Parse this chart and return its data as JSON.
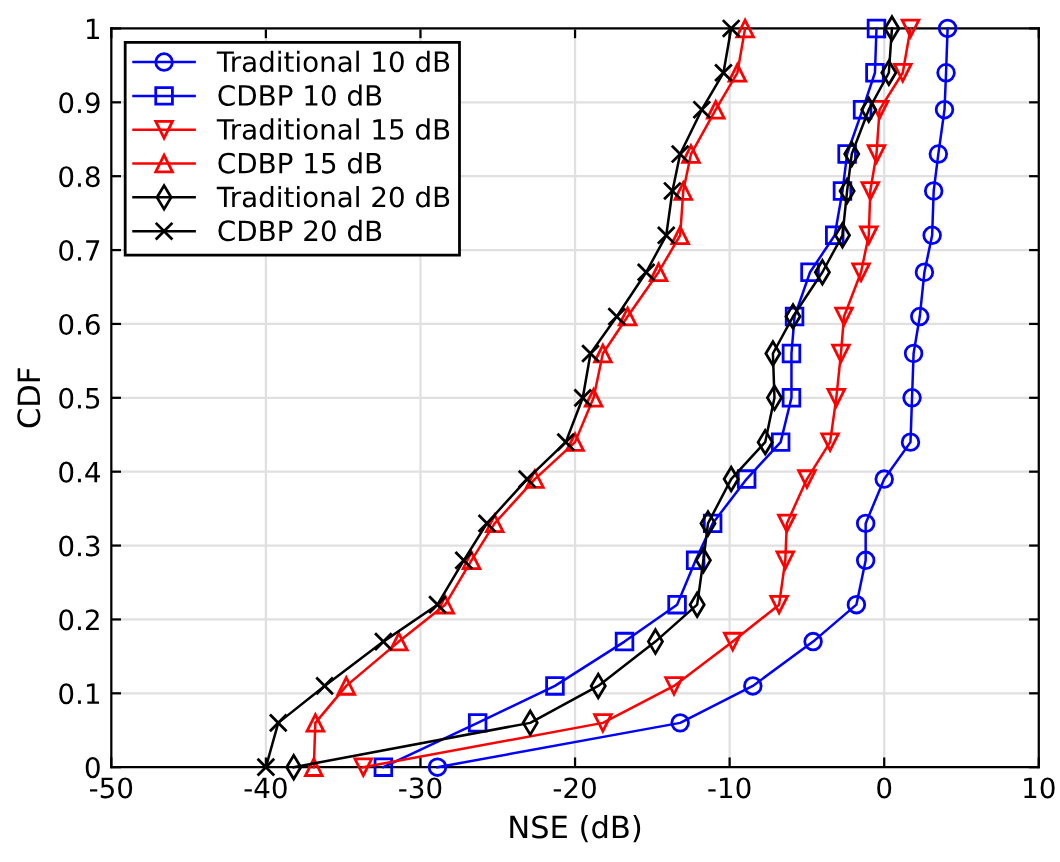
{
  "chart_data": {
    "type": "line",
    "xlabel": "NSE (dB)",
    "ylabel": "CDF",
    "xlim": [
      -50,
      10
    ],
    "xticks": [
      -50,
      -40,
      -30,
      -20,
      -10,
      0,
      10
    ],
    "ylim": [
      0,
      1
    ],
    "yticks": [
      0,
      0.1,
      0.2,
      0.3,
      0.4,
      0.5,
      0.6,
      0.7,
      0.8,
      0.9,
      1
    ],
    "grid": true,
    "legend": "top left",
    "line_style": "solid",
    "series": [
      {
        "name": "Traditional 10 dB",
        "color": "#0000ff",
        "marker": "circle",
        "x": [
          -28.9,
          -13.2,
          -8.5,
          -4.6,
          -1.8,
          -1.2,
          -1.2,
          0,
          1.7,
          1.8,
          1.9,
          2.3,
          2.6,
          3.1,
          3.2,
          3.5,
          3.9,
          4.0,
          4.1
        ],
        "values": [
          0,
          0.06,
          0.11,
          0.17,
          0.22,
          0.28,
          0.33,
          0.39,
          0.44,
          0.5,
          0.56,
          0.61,
          0.67,
          0.72,
          0.78,
          0.83,
          0.89,
          0.94,
          1
        ]
      },
      {
        "name": "CDBP 10 dB",
        "color": "#0000ff",
        "marker": "square",
        "x": [
          -32.4,
          -26.3,
          -21.3,
          -16.8,
          -13.4,
          -12.2,
          -11.1,
          -8.9,
          -6.7,
          -6.0,
          -6.0,
          -5.8,
          -4.8,
          -3.2,
          -2.7,
          -2.4,
          -1.4,
          -0.6,
          -0.5
        ],
        "values": [
          0,
          0.06,
          0.11,
          0.17,
          0.22,
          0.28,
          0.33,
          0.39,
          0.44,
          0.5,
          0.56,
          0.61,
          0.67,
          0.72,
          0.78,
          0.83,
          0.89,
          0.94,
          1
        ]
      },
      {
        "name": "Traditional 15 dB",
        "color": "#ff0000",
        "marker": "triangle_down",
        "x": [
          -33.7,
          -18.2,
          -13.6,
          -9.8,
          -6.8,
          -6.4,
          -6.3,
          -5.0,
          -3.5,
          -3.1,
          -2.8,
          -2.6,
          -1.5,
          -1.0,
          -0.9,
          -0.5,
          -0.3,
          1.2,
          1.7
        ],
        "values": [
          0,
          0.06,
          0.11,
          0.17,
          0.22,
          0.28,
          0.33,
          0.39,
          0.44,
          0.5,
          0.56,
          0.61,
          0.67,
          0.72,
          0.78,
          0.83,
          0.89,
          0.94,
          1
        ]
      },
      {
        "name": "CDBP 15 dB",
        "color": "#ff0000",
        "marker": "triangle",
        "x": [
          -36.9,
          -36.8,
          -34.8,
          -31.4,
          -28.4,
          -26.7,
          -25.2,
          -22.6,
          -20.0,
          -18.8,
          -18.2,
          -16.6,
          -14.6,
          -13.2,
          -13.0,
          -12.5,
          -10.9,
          -9.5,
          -9.0
        ],
        "values": [
          0,
          0.06,
          0.11,
          0.17,
          0.22,
          0.28,
          0.33,
          0.39,
          0.44,
          0.5,
          0.56,
          0.61,
          0.67,
          0.72,
          0.78,
          0.83,
          0.89,
          0.94,
          1
        ]
      },
      {
        "name": "Traditional 20 dB",
        "color": "#000000",
        "marker": "diamond",
        "x": [
          -38.2,
          -22.9,
          -18.5,
          -14.8,
          -12.1,
          -11.7,
          -11.4,
          -9.9,
          -7.7,
          -7.1,
          -7.2,
          -5.9,
          -4.0,
          -2.7,
          -2.4,
          -2.1,
          -1.0,
          0.3,
          0.5
        ],
        "values": [
          0,
          0.06,
          0.11,
          0.17,
          0.22,
          0.28,
          0.33,
          0.39,
          0.44,
          0.5,
          0.56,
          0.61,
          0.67,
          0.72,
          0.78,
          0.83,
          0.89,
          0.94,
          1
        ]
      },
      {
        "name": "CDBP 20 dB",
        "color": "#000000",
        "marker": "cross",
        "x": [
          -40.0,
          -39.2,
          -36.2,
          -32.4,
          -28.9,
          -27.2,
          -25.7,
          -23.1,
          -20.6,
          -19.5,
          -19.0,
          -17.3,
          -15.4,
          -14.1,
          -13.7,
          -13.2,
          -11.8,
          -10.4,
          -9.9
        ],
        "values": [
          0,
          0.06,
          0.11,
          0.17,
          0.22,
          0.28,
          0.33,
          0.39,
          0.44,
          0.5,
          0.56,
          0.61,
          0.67,
          0.72,
          0.78,
          0.83,
          0.89,
          0.94,
          1
        ]
      }
    ]
  }
}
